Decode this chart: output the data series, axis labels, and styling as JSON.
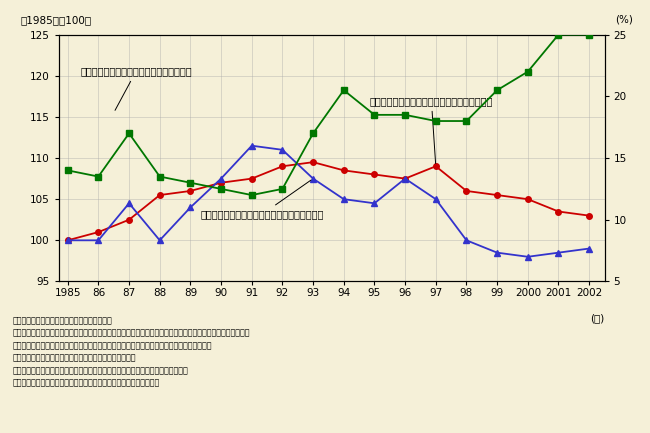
{
  "years": [
    1985,
    1986,
    1987,
    1988,
    1989,
    1990,
    1991,
    1992,
    1993,
    1994,
    1995,
    1996,
    1997,
    1998,
    1999,
    2000,
    2001,
    2002
  ],
  "red_series": [
    100.0,
    101.0,
    102.5,
    105.5,
    106.0,
    107.0,
    107.5,
    109.0,
    109.5,
    108.5,
    108.0,
    107.5,
    109.0,
    106.0,
    105.5,
    105.0,
    103.5,
    103.0
  ],
  "blue_series": [
    100.0,
    100.0,
    104.5,
    100.0,
    104.0,
    107.5,
    111.5,
    111.0,
    107.5,
    105.0,
    104.5,
    107.5,
    105.0,
    100.0,
    98.5,
    98.0,
    98.5,
    99.0
  ],
  "green_series": [
    14.0,
    13.5,
    17.0,
    13.5,
    13.0,
    12.5,
    12.0,
    12.5,
    17.0,
    20.5,
    18.5,
    18.5,
    18.0,
    18.0,
    20.5,
    22.0,
    25.0,
    25.0
  ],
  "background_color": "#f5f0d8",
  "red_color": "#cc0000",
  "blue_color": "#3333cc",
  "green_color": "#007700",
  "yleft_min": 95,
  "yleft_max": 125,
  "yright_min": 5,
  "yright_max": 25,
  "xtick_labels": [
    "1985",
    "86",
    "87",
    "88",
    "89",
    "90",
    "91",
    "92",
    "93",
    "94",
    "95",
    "96",
    "97",
    "98",
    "99",
    "2000",
    "2001",
    "2002"
  ],
  "left_ylabel": "（1985年＝100）",
  "right_ylabel": "(%)",
  "xlabel": "(年)",
  "label_green": "住宅ローン返済額／可処分所得（右目盛）",
  "label_red": "消費支出（住宅ローンのない世帯）（左目盛）",
  "label_blue": "消費支出（住宅ローンのある世帯）（左目盛）",
  "note_line1": "（備考）１．総務省「家計調査」により作成。",
  "note_line2": "２．全国・勤労者世帯における１世帯の１か月当たりの消費支出及び可処分所得に占める住宅ローン返済額の",
  "note_line3": "　推移。住宅ローンのない世帯は勤労者世帯全体から住宅ローンのある世帯を除いて真出。",
  "note_line4": "３．消費支出は、１９８５年を１００とした各年の値。",
  "note_line5": "４．消費支出は、消費者物価指数（持家の帰属家購を除く総合）により実質化。",
  "note_line6": "５．「土地家屋借金返済額」を「住宅ローン返済額」としている。"
}
